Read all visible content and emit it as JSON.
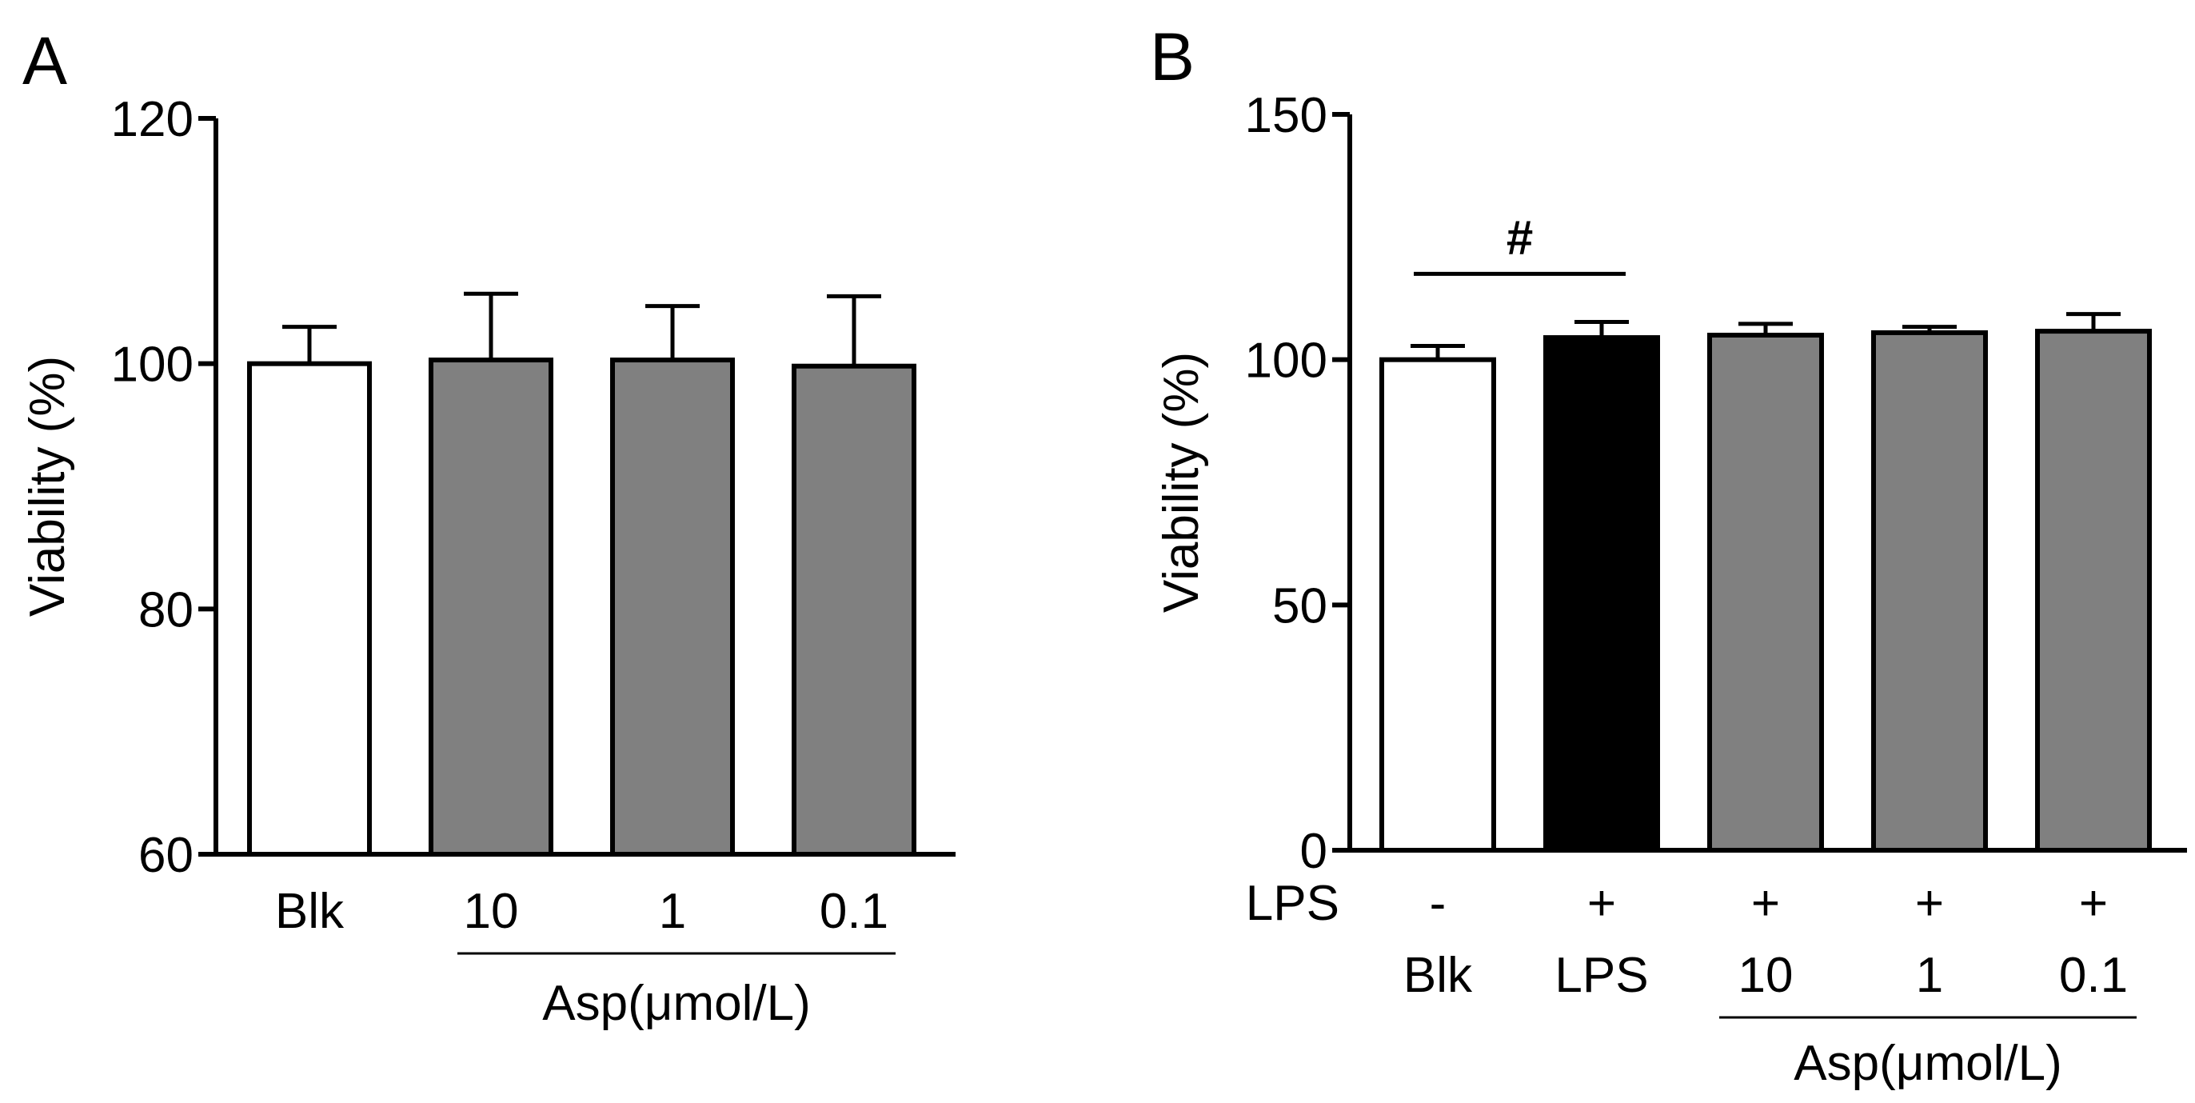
{
  "chart_data": [
    {
      "type": "bar",
      "panel": "A",
      "ylabel": "Viability (%)",
      "ylim": [
        60,
        120
      ],
      "yticks": [
        60,
        80,
        100,
        120
      ],
      "categories": [
        "Blk",
        "10",
        "1",
        "0.1"
      ],
      "values": [
        100,
        100.3,
        100.3,
        99.8
      ],
      "errors": [
        3,
        5.4,
        4.4,
        5.7
      ],
      "bar_colors": [
        "#ffffff",
        "#808080",
        "#808080",
        "#808080"
      ],
      "group_label": "Asp(μmol/L)",
      "group_span": [
        1,
        3
      ]
    },
    {
      "type": "bar",
      "panel": "B",
      "ylabel": "Viability (%)",
      "ylim": [
        0,
        150
      ],
      "yticks": [
        0,
        50,
        100,
        150
      ],
      "categories": [
        "Blk",
        "LPS",
        "10",
        "1",
        "0.1"
      ],
      "values": [
        100,
        104.5,
        105,
        105.5,
        105.8
      ],
      "errors": [
        2.8,
        3.2,
        2.3,
        1.2,
        3.5
      ],
      "bar_colors": [
        "#ffffff",
        "#000000",
        "#808080",
        "#808080",
        "#808080"
      ],
      "row_label": "LPS",
      "row_values": [
        "-",
        "+",
        "+",
        "+",
        "+"
      ],
      "group_label": "Asp(μmol/L)",
      "group_span": [
        2,
        4
      ],
      "annotation": {
        "text": "#",
        "from": 0,
        "to": 1,
        "y": 117.5
      }
    }
  ]
}
